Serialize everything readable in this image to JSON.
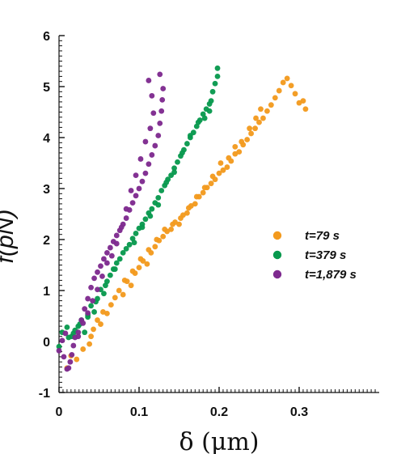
{
  "chart_data": {
    "type": "scatter",
    "title": "",
    "xlabel": "δ (μm)",
    "ylabel": "f(pN)",
    "xlim": [
      0,
      0.4
    ],
    "ylim": [
      -1,
      6
    ],
    "x_ticks": [
      "0",
      "0.1",
      "0.2",
      "0.3"
    ],
    "y_ticks": [
      "-1",
      "0",
      "1",
      "2",
      "3",
      "4",
      "5",
      "6"
    ],
    "grid": false,
    "legend_position": "right-middle",
    "series": [
      {
        "name": "t=79 s",
        "color": "#F39A1E",
        "points": [
          [
            0.01,
            -0.52
          ],
          [
            0.015,
            -0.28
          ],
          [
            0.022,
            -0.35
          ],
          [
            0.03,
            -0.15
          ],
          [
            0.038,
            -0.05
          ],
          [
            0.04,
            0.1
          ],
          [
            0.043,
            0.24
          ],
          [
            0.048,
            0.42
          ],
          [
            0.052,
            0.34
          ],
          [
            0.055,
            0.58
          ],
          [
            0.06,
            0.55
          ],
          [
            0.065,
            0.72
          ],
          [
            0.07,
            0.86
          ],
          [
            0.075,
            1.0
          ],
          [
            0.08,
            0.92
          ],
          [
            0.085,
            1.18
          ],
          [
            0.09,
            1.1
          ],
          [
            0.095,
            1.34
          ],
          [
            0.1,
            1.45
          ],
          [
            0.105,
            1.58
          ],
          [
            0.11,
            1.52
          ],
          [
            0.115,
            1.74
          ],
          [
            0.12,
            1.86
          ],
          [
            0.125,
            1.98
          ],
          [
            0.13,
            2.06
          ],
          [
            0.135,
            2.16
          ],
          [
            0.14,
            2.2
          ],
          [
            0.145,
            2.34
          ],
          [
            0.15,
            2.3
          ],
          [
            0.155,
            2.48
          ],
          [
            0.16,
            2.52
          ],
          [
            0.165,
            2.66
          ],
          [
            0.17,
            2.7
          ],
          [
            0.175,
            2.84
          ],
          [
            0.18,
            2.92
          ],
          [
            0.185,
            3.02
          ],
          [
            0.19,
            3.1
          ],
          [
            0.195,
            3.18
          ],
          [
            0.2,
            3.3
          ],
          [
            0.205,
            3.36
          ],
          [
            0.21,
            3.42
          ],
          [
            0.215,
            3.54
          ],
          [
            0.22,
            3.68
          ],
          [
            0.225,
            3.72
          ],
          [
            0.23,
            3.86
          ],
          [
            0.235,
            3.96
          ],
          [
            0.24,
            4.08
          ],
          [
            0.245,
            4.18
          ],
          [
            0.25,
            4.3
          ],
          [
            0.255,
            4.38
          ],
          [
            0.26,
            4.52
          ],
          [
            0.265,
            4.64
          ],
          [
            0.27,
            4.78
          ],
          [
            0.275,
            4.92
          ],
          [
            0.28,
            5.08
          ],
          [
            0.285,
            5.16
          ],
          [
            0.29,
            5.02
          ],
          [
            0.295,
            4.86
          ],
          [
            0.3,
            4.68
          ],
          [
            0.305,
            4.72
          ],
          [
            0.308,
            4.56
          ],
          [
            0.252,
            4.56
          ],
          [
            0.246,
            4.38
          ],
          [
            0.238,
            4.18
          ],
          [
            0.228,
            3.92
          ],
          [
            0.22,
            3.82
          ],
          [
            0.212,
            3.6
          ],
          [
            0.202,
            3.5
          ],
          [
            0.192,
            3.24
          ],
          [
            0.182,
            3.02
          ],
          [
            0.172,
            2.84
          ],
          [
            0.162,
            2.62
          ],
          [
            0.152,
            2.42
          ],
          [
            0.142,
            2.3
          ],
          [
            0.132,
            2.2
          ],
          [
            0.122,
            2.0
          ],
          [
            0.112,
            1.8
          ],
          [
            0.102,
            1.62
          ],
          [
            0.092,
            1.38
          ],
          [
            0.082,
            1.2
          ]
        ]
      },
      {
        "name": "t=379 s",
        "color": "#08994E",
        "points": [
          [
            0.0,
            -0.1
          ],
          [
            0.004,
            0.18
          ],
          [
            0.01,
            0.28
          ],
          [
            0.016,
            0.1
          ],
          [
            0.02,
            0.22
          ],
          [
            0.024,
            0.3
          ],
          [
            0.028,
            0.42
          ],
          [
            0.032,
            0.18
          ],
          [
            0.036,
            0.52
          ],
          [
            0.04,
            0.7
          ],
          [
            0.044,
            0.58
          ],
          [
            0.048,
            0.84
          ],
          [
            0.052,
            1.02
          ],
          [
            0.056,
            0.94
          ],
          [
            0.06,
            1.18
          ],
          [
            0.064,
            1.3
          ],
          [
            0.068,
            1.42
          ],
          [
            0.072,
            1.54
          ],
          [
            0.076,
            1.62
          ],
          [
            0.08,
            1.74
          ],
          [
            0.084,
            1.82
          ],
          [
            0.088,
            1.9
          ],
          [
            0.092,
            2.02
          ],
          [
            0.096,
            2.12
          ],
          [
            0.1,
            2.22
          ],
          [
            0.104,
            2.3
          ],
          [
            0.108,
            2.4
          ],
          [
            0.112,
            2.52
          ],
          [
            0.116,
            2.6
          ],
          [
            0.12,
            2.72
          ],
          [
            0.124,
            2.82
          ],
          [
            0.128,
            2.96
          ],
          [
            0.132,
            3.06
          ],
          [
            0.136,
            3.18
          ],
          [
            0.14,
            3.26
          ],
          [
            0.144,
            3.4
          ],
          [
            0.148,
            3.52
          ],
          [
            0.152,
            3.64
          ],
          [
            0.156,
            3.76
          ],
          [
            0.16,
            3.88
          ],
          [
            0.164,
            4.0
          ],
          [
            0.168,
            4.1
          ],
          [
            0.172,
            4.22
          ],
          [
            0.176,
            4.34
          ],
          [
            0.18,
            4.46
          ],
          [
            0.184,
            4.56
          ],
          [
            0.188,
            4.66
          ],
          [
            0.19,
            4.72
          ],
          [
            0.192,
            4.9
          ],
          [
            0.195,
            5.06
          ],
          [
            0.198,
            5.2
          ],
          [
            0.198,
            5.36
          ],
          [
            0.094,
            1.94
          ],
          [
            0.104,
            2.24
          ],
          [
            0.114,
            2.46
          ],
          [
            0.124,
            2.68
          ],
          [
            0.134,
            3.12
          ],
          [
            0.144,
            3.32
          ],
          [
            0.154,
            3.7
          ],
          [
            0.164,
            4.04
          ],
          [
            0.174,
            4.3
          ],
          [
            0.182,
            4.38
          ],
          [
            0.188,
            4.52
          ],
          [
            0.07,
            1.42
          ],
          [
            0.058,
            1.1
          ],
          [
            0.046,
            0.78
          ],
          [
            0.036,
            0.48
          ],
          [
            0.026,
            0.34
          ],
          [
            0.018,
            0.16
          ],
          [
            0.012,
            0.08
          ]
        ]
      },
      {
        "name": "t=1,879 s",
        "color": "#7E2A8F",
        "points": [
          [
            0.0,
            -0.18
          ],
          [
            0.004,
            0.02
          ],
          [
            0.008,
            0.16
          ],
          [
            0.012,
            -0.52
          ],
          [
            0.016,
            -0.26
          ],
          [
            0.02,
            0.08
          ],
          [
            0.024,
            0.18
          ],
          [
            0.028,
            0.42
          ],
          [
            0.032,
            0.64
          ],
          [
            0.036,
            0.84
          ],
          [
            0.04,
            1.06
          ],
          [
            0.044,
            1.24
          ],
          [
            0.048,
            1.36
          ],
          [
            0.052,
            1.48
          ],
          [
            0.056,
            1.62
          ],
          [
            0.06,
            1.74
          ],
          [
            0.064,
            1.84
          ],
          [
            0.068,
            1.96
          ],
          [
            0.072,
            2.08
          ],
          [
            0.076,
            2.18
          ],
          [
            0.08,
            2.3
          ],
          [
            0.084,
            2.42
          ],
          [
            0.088,
            2.58
          ],
          [
            0.092,
            2.72
          ],
          [
            0.096,
            2.86
          ],
          [
            0.1,
            3.0
          ],
          [
            0.104,
            3.14
          ],
          [
            0.108,
            3.3
          ],
          [
            0.112,
            3.48
          ],
          [
            0.116,
            3.66
          ],
          [
            0.12,
            3.84
          ],
          [
            0.124,
            4.04
          ],
          [
            0.126,
            4.28
          ],
          [
            0.128,
            4.52
          ],
          [
            0.129,
            4.74
          ],
          [
            0.13,
            4.96
          ],
          [
            0.126,
            5.24
          ],
          [
            0.112,
            5.12
          ],
          [
            0.116,
            4.82
          ],
          [
            0.118,
            4.48
          ],
          [
            0.114,
            4.18
          ],
          [
            0.108,
            3.92
          ],
          [
            0.102,
            3.58
          ],
          [
            0.096,
            3.26
          ],
          [
            0.09,
            2.96
          ],
          [
            0.084,
            2.6
          ],
          [
            0.078,
            2.24
          ],
          [
            0.072,
            1.92
          ],
          [
            0.066,
            1.68
          ],
          [
            0.06,
            1.54
          ],
          [
            0.054,
            1.28
          ],
          [
            0.048,
            1.02
          ],
          [
            0.042,
            0.8
          ],
          [
            0.036,
            0.56
          ],
          [
            0.03,
            0.36
          ],
          [
            0.024,
            0.1
          ],
          [
            0.018,
            -0.08
          ],
          [
            0.014,
            -0.4
          ],
          [
            0.01,
            -0.54
          ],
          [
            0.006,
            -0.3
          ]
        ]
      }
    ]
  }
}
